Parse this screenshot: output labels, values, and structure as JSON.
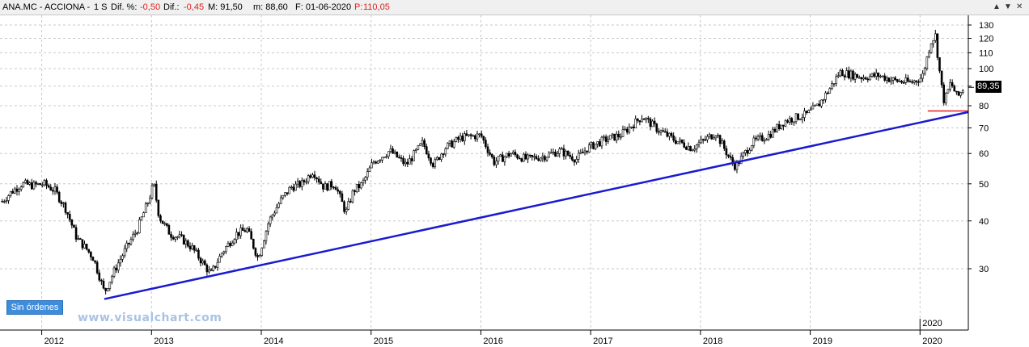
{
  "header": {
    "symbol": "ANA.MC - ACCIONA -",
    "period": "1 S",
    "diff_pct_label": "Dif. %:",
    "diff_pct_value": "-0,50",
    "diff_label": "Dif.:",
    "diff_value": "-0,45",
    "max_label": "M: 91,50",
    "min_label": "m: 88,60",
    "date_label": "F: 01-06-2020",
    "price_label": "P:",
    "price_value": "110,05"
  },
  "window_buttons": {
    "up": "▲",
    "down": "▼",
    "close": "✕"
  },
  "orders_badge": "Sin órdenes",
  "watermark": "www.visualchart.com",
  "last_price": "89,35",
  "colors": {
    "candles": "#000000",
    "trendline": "#1a1ad0",
    "support": "#e02020",
    "grid": "#c8c8c8",
    "badge": "#3f8cdc"
  },
  "chart_data": {
    "type": "candlestick",
    "scale": "log",
    "grid": true,
    "ylim": [
      24,
      135
    ],
    "yticks": [
      30,
      40,
      50,
      60,
      70,
      80,
      90,
      100,
      110,
      120,
      130
    ],
    "xticks": [
      "2012",
      "2013",
      "2014",
      "2015",
      "2016",
      "2017",
      "2018",
      "2019",
      "2020"
    ],
    "xlim": [
      2011.6,
      2020.42
    ],
    "latest_period_label": "2020",
    "last_value": 89.35,
    "price_path": [
      [
        2011.62,
        45
      ],
      [
        2011.7,
        47.5
      ],
      [
        2011.8,
        50
      ],
      [
        2011.9,
        49.5
      ],
      [
        2012.0,
        50
      ],
      [
        2012.1,
        48
      ],
      [
        2012.2,
        43
      ],
      [
        2012.3,
        36
      ],
      [
        2012.38,
        34
      ],
      [
        2012.45,
        32
      ],
      [
        2012.5,
        29
      ],
      [
        2012.55,
        26
      ],
      [
        2012.65,
        30
      ],
      [
        2012.75,
        34
      ],
      [
        2012.85,
        38
      ],
      [
        2012.95,
        45
      ],
      [
        2013.0,
        50
      ],
      [
        2013.05,
        41
      ],
      [
        2013.15,
        37
      ],
      [
        2013.25,
        36
      ],
      [
        2013.35,
        34
      ],
      [
        2013.45,
        31
      ],
      [
        2013.52,
        29
      ],
      [
        2013.62,
        33
      ],
      [
        2013.75,
        37
      ],
      [
        2013.85,
        38
      ],
      [
        2013.95,
        32
      ],
      [
        2014.05,
        40
      ],
      [
        2014.15,
        45
      ],
      [
        2014.25,
        49
      ],
      [
        2014.35,
        50
      ],
      [
        2014.45,
        54
      ],
      [
        2014.55,
        49
      ],
      [
        2014.65,
        50
      ],
      [
        2014.75,
        42
      ],
      [
        2014.82,
        48
      ],
      [
        2014.9,
        50
      ],
      [
        2015.0,
        57
      ],
      [
        2015.15,
        61
      ],
      [
        2015.3,
        56
      ],
      [
        2015.45,
        64
      ],
      [
        2015.55,
        56
      ],
      [
        2015.65,
        62
      ],
      [
        2015.8,
        66
      ],
      [
        2015.98,
        67
      ],
      [
        2016.1,
        57
      ],
      [
        2016.25,
        60
      ],
      [
        2016.4,
        58
      ],
      [
        2016.55,
        59
      ],
      [
        2016.7,
        61
      ],
      [
        2016.85,
        58
      ],
      [
        2016.95,
        62
      ],
      [
        2017.1,
        65
      ],
      [
        2017.25,
        67
      ],
      [
        2017.45,
        75
      ],
      [
        2017.6,
        69
      ],
      [
        2017.75,
        65
      ],
      [
        2017.9,
        62
      ],
      [
        2018.05,
        66
      ],
      [
        2018.12,
        68
      ],
      [
        2018.25,
        58
      ],
      [
        2018.3,
        55.5
      ],
      [
        2018.45,
        64
      ],
      [
        2018.6,
        67
      ],
      [
        2018.75,
        73
      ],
      [
        2018.95,
        76
      ],
      [
        2019.05,
        80
      ],
      [
        2019.15,
        88
      ],
      [
        2019.25,
        98
      ],
      [
        2019.45,
        95
      ],
      [
        2019.6,
        96
      ],
      [
        2019.75,
        93
      ],
      [
        2019.9,
        92
      ],
      [
        2020.0,
        95
      ],
      [
        2020.08,
        118
      ],
      [
        2020.12,
        122
      ],
      [
        2020.17,
        92
      ],
      [
        2020.2,
        82
      ],
      [
        2020.26,
        92
      ],
      [
        2020.32,
        84
      ],
      [
        2020.38,
        89.35
      ]
    ],
    "annotations": {
      "trendline": {
        "from": [
          2012.55,
          25
        ],
        "to": [
          2020.42,
          77
        ]
      },
      "support": {
        "x": [
          2020.05,
          2020.42
        ],
        "y": 77.5
      }
    }
  }
}
